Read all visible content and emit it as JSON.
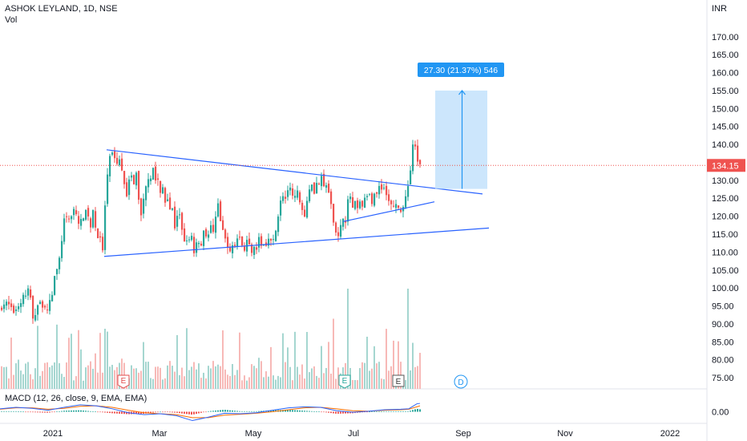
{
  "header": {
    "title": "ASHOK LEYLAND, 1D, NSE",
    "vol_label": "Vol",
    "currency": "INR"
  },
  "macd_label": "MACD (12, 26, close, 9, EMA, EMA)",
  "measure_label": "27.30 (21.37%) 546",
  "price_tag": "134.15",
  "markers": {
    "earnings": "E",
    "dividend": "D"
  },
  "colors": {
    "up": "#26a69a",
    "down": "#ef5350",
    "line": "#2962ff",
    "measure": "#2196f3",
    "measure_fill": "#bbdefb",
    "last_price": "#ef5350"
  },
  "chart_data": {
    "type": "candlestick",
    "title": "ASHOK LEYLAND, 1D, NSE",
    "ylim": [
      73,
      178
    ],
    "y_ticks": [
      75,
      80,
      85,
      90,
      95,
      100,
      105,
      110,
      115,
      120,
      125,
      130,
      135,
      140,
      145,
      150,
      155,
      160,
      165,
      170
    ],
    "x_ticks": [
      "2021",
      "Mar",
      "May",
      "Jul",
      "Sep",
      "Nov",
      "2022"
    ],
    "last_price": 134.15,
    "close_path": [
      [
        0,
        94
      ],
      [
        6,
        96
      ],
      [
        12,
        95
      ],
      [
        16,
        93
      ],
      [
        22,
        95
      ],
      [
        26,
        96
      ],
      [
        30,
        99
      ],
      [
        33,
        97
      ],
      [
        36,
        101
      ],
      [
        38,
        97
      ],
      [
        40,
        93
      ],
      [
        42,
        89
      ],
      [
        44,
        93
      ],
      [
        48,
        96
      ],
      [
        52,
        95
      ],
      [
        55,
        96
      ],
      [
        58,
        93
      ],
      [
        60,
        95
      ],
      [
        62,
        96
      ],
      [
        64,
        100
      ],
      [
        66,
        97
      ],
      [
        68,
        103
      ],
      [
        70,
        106
      ],
      [
        72,
        104
      ],
      [
        74,
        108
      ],
      [
        76,
        113
      ],
      [
        78,
        114
      ],
      [
        80,
        119
      ],
      [
        82,
        117
      ],
      [
        84,
        121
      ],
      [
        86,
        119
      ],
      [
        88,
        117
      ],
      [
        90,
        124
      ],
      [
        92,
        122
      ],
      [
        94,
        120
      ],
      [
        96,
        121
      ],
      [
        98,
        118
      ],
      [
        100,
        116
      ],
      [
        102,
        121
      ],
      [
        104,
        120
      ],
      [
        106,
        118
      ],
      [
        108,
        124
      ],
      [
        110,
        120
      ],
      [
        112,
        118
      ],
      [
        114,
        116
      ],
      [
        116,
        121
      ],
      [
        118,
        119
      ],
      [
        120,
        116
      ],
      [
        122,
        114
      ],
      [
        124,
        117
      ],
      [
        126,
        112
      ],
      [
        128,
        110
      ],
      [
        130,
        119
      ],
      [
        132,
        127
      ],
      [
        134,
        131
      ],
      [
        136,
        136
      ],
      [
        138,
        138
      ],
      [
        140,
        137
      ],
      [
        142,
        135
      ],
      [
        144,
        136
      ],
      [
        146,
        134
      ],
      [
        148,
        137
      ],
      [
        150,
        135
      ],
      [
        152,
        133
      ],
      [
        154,
        131
      ],
      [
        156,
        128
      ],
      [
        158,
        126
      ],
      [
        160,
        129
      ],
      [
        162,
        133
      ],
      [
        164,
        131
      ],
      [
        166,
        128
      ],
      [
        168,
        129
      ],
      [
        170,
        132
      ],
      [
        172,
        126
      ],
      [
        174,
        124
      ],
      [
        176,
        120
      ],
      [
        178,
        124
      ],
      [
        180,
        126
      ],
      [
        182,
        128
      ],
      [
        184,
        130
      ],
      [
        186,
        132
      ],
      [
        188,
        131
      ],
      [
        190,
        134
      ],
      [
        192,
        133
      ],
      [
        194,
        130
      ],
      [
        196,
        132
      ],
      [
        198,
        128
      ],
      [
        200,
        126
      ],
      [
        202,
        129
      ],
      [
        204,
        127
      ],
      [
        206,
        124
      ],
      [
        208,
        126
      ],
      [
        210,
        125
      ],
      [
        212,
        122
      ],
      [
        214,
        124
      ],
      [
        216,
        120
      ],
      [
        218,
        117
      ],
      [
        220,
        119
      ],
      [
        222,
        122
      ],
      [
        224,
        120
      ],
      [
        226,
        118
      ],
      [
        228,
        115
      ],
      [
        230,
        113
      ],
      [
        232,
        116
      ],
      [
        234,
        112
      ],
      [
        236,
        114
      ],
      [
        238,
        116
      ],
      [
        240,
        113
      ],
      [
        242,
        110
      ],
      [
        244,
        112
      ],
      [
        246,
        114
      ],
      [
        248,
        113
      ],
      [
        250,
        111
      ],
      [
        252,
        113
      ],
      [
        254,
        116
      ],
      [
        256,
        114
      ],
      [
        258,
        116
      ],
      [
        260,
        115
      ],
      [
        262,
        118
      ],
      [
        264,
        117
      ],
      [
        266,
        115
      ],
      [
        268,
        119
      ],
      [
        270,
        122
      ],
      [
        272,
        124
      ],
      [
        274,
        120
      ],
      [
        276,
        117
      ],
      [
        278,
        116
      ],
      [
        280,
        114
      ],
      [
        282,
        113
      ],
      [
        284,
        112
      ],
      [
        286,
        110
      ],
      [
        288,
        109
      ],
      [
        290,
        112
      ],
      [
        292,
        111
      ],
      [
        294,
        113
      ],
      [
        296,
        114
      ],
      [
        298,
        113
      ],
      [
        300,
        115
      ],
      [
        302,
        112
      ],
      [
        304,
        110
      ],
      [
        306,
        112
      ],
      [
        308,
        113
      ],
      [
        310,
        112
      ],
      [
        312,
        111
      ],
      [
        314,
        109
      ],
      [
        316,
        110
      ],
      [
        318,
        112
      ],
      [
        320,
        111
      ],
      [
        322,
        113
      ],
      [
        324,
        114
      ],
      [
        326,
        112
      ],
      [
        328,
        111
      ],
      [
        330,
        113
      ],
      [
        332,
        112
      ],
      [
        334,
        114
      ],
      [
        336,
        115
      ],
      [
        338,
        113
      ],
      [
        340,
        112
      ],
      [
        342,
        114
      ],
      [
        344,
        116
      ],
      [
        346,
        119
      ],
      [
        348,
        122
      ],
      [
        350,
        124
      ],
      [
        352,
        125
      ],
      [
        354,
        126
      ],
      [
        356,
        125
      ],
      [
        358,
        127
      ],
      [
        360,
        126
      ],
      [
        362,
        128
      ],
      [
        364,
        126
      ],
      [
        366,
        127
      ],
      [
        368,
        125
      ],
      [
        370,
        127
      ],
      [
        372,
        126
      ],
      [
        374,
        124
      ],
      [
        376,
        123
      ],
      [
        378,
        122
      ],
      [
        380,
        120
      ],
      [
        382,
        124
      ],
      [
        384,
        126
      ],
      [
        386,
        128
      ],
      [
        388,
        130
      ],
      [
        390,
        128
      ],
      [
        392,
        127
      ],
      [
        394,
        128
      ],
      [
        396,
        130
      ],
      [
        398,
        129
      ],
      [
        400,
        131
      ],
      [
        402,
        130
      ],
      [
        404,
        128
      ],
      [
        406,
        130
      ],
      [
        408,
        128
      ],
      [
        410,
        126
      ],
      [
        412,
        124
      ],
      [
        414,
        122
      ],
      [
        416,
        119
      ],
      [
        418,
        117
      ],
      [
        420,
        115
      ],
      [
        422,
        114
      ],
      [
        424,
        116
      ],
      [
        426,
        118
      ],
      [
        428,
        120
      ],
      [
        430,
        118
      ],
      [
        432,
        120
      ],
      [
        434,
        124
      ],
      [
        436,
        126
      ],
      [
        438,
        125
      ],
      [
        440,
        122
      ],
      [
        442,
        124
      ],
      [
        444,
        123
      ],
      [
        446,
        122
      ],
      [
        448,
        123
      ],
      [
        450,
        124
      ],
      [
        452,
        123
      ],
      [
        454,
        125
      ],
      [
        456,
        124
      ],
      [
        458,
        126
      ],
      [
        460,
        125
      ],
      [
        462,
        126
      ],
      [
        464,
        124
      ],
      [
        466,
        126
      ],
      [
        468,
        127
      ],
      [
        470,
        126
      ],
      [
        472,
        128
      ],
      [
        474,
        129
      ],
      [
        476,
        128
      ],
      [
        478,
        129
      ],
      [
        480,
        127
      ],
      [
        482,
        126
      ],
      [
        484,
        125
      ],
      [
        486,
        124
      ],
      [
        488,
        123
      ],
      [
        490,
        124
      ],
      [
        492,
        122
      ],
      [
        494,
        123
      ],
      [
        496,
        122
      ],
      [
        498,
        123
      ],
      [
        500,
        121
      ],
      [
        502,
        122
      ],
      [
        504,
        124
      ],
      [
        506,
        125
      ],
      [
        508,
        127
      ],
      [
        510,
        130
      ],
      [
        512,
        133
      ],
      [
        514,
        138
      ],
      [
        516,
        142
      ],
      [
        518,
        139
      ],
      [
        520,
        136
      ],
      [
        522,
        135
      ],
      [
        524,
        134.15
      ]
    ],
    "volume_max": 100,
    "macd": {
      "ylim": [
        -2.2,
        2.2
      ],
      "y_ticks": [
        0
      ],
      "macd_path": [
        [
          0,
          0.6
        ],
        [
          20,
          0.9
        ],
        [
          40,
          0.7
        ],
        [
          60,
          0.3
        ],
        [
          80,
          0.9
        ],
        [
          100,
          1.4
        ],
        [
          120,
          1.2
        ],
        [
          140,
          0.6
        ],
        [
          160,
          -0.2
        ],
        [
          180,
          -0.6
        ],
        [
          200,
          -0.4
        ],
        [
          220,
          -0.8
        ],
        [
          240,
          -1.8
        ],
        [
          260,
          -1.1
        ],
        [
          280,
          -0.3
        ],
        [
          300,
          -0.4
        ],
        [
          320,
          -0.2
        ],
        [
          340,
          0.3
        ],
        [
          360,
          0.8
        ],
        [
          380,
          1.0
        ],
        [
          400,
          0.9
        ],
        [
          420,
          0.2
        ],
        [
          440,
          -0.1
        ],
        [
          460,
          0.1
        ],
        [
          480,
          0.4
        ],
        [
          500,
          0.5
        ],
        [
          510,
          0.6
        ],
        [
          520,
          1.6
        ],
        [
          524,
          1.7
        ]
      ],
      "signal_path": [
        [
          0,
          0.5
        ],
        [
          20,
          0.8
        ],
        [
          40,
          0.8
        ],
        [
          60,
          0.5
        ],
        [
          80,
          0.7
        ],
        [
          100,
          1.1
        ],
        [
          120,
          1.2
        ],
        [
          140,
          0.9
        ],
        [
          160,
          0.3
        ],
        [
          180,
          -0.2
        ],
        [
          200,
          -0.4
        ],
        [
          220,
          -0.6
        ],
        [
          240,
          -1.2
        ],
        [
          260,
          -1.2
        ],
        [
          280,
          -0.7
        ],
        [
          300,
          -0.5
        ],
        [
          320,
          -0.3
        ],
        [
          340,
          0.0
        ],
        [
          360,
          0.4
        ],
        [
          380,
          0.8
        ],
        [
          400,
          0.9
        ],
        [
          420,
          0.6
        ],
        [
          440,
          0.2
        ],
        [
          460,
          0.1
        ],
        [
          480,
          0.3
        ],
        [
          500,
          0.4
        ],
        [
          510,
          0.5
        ],
        [
          520,
          1.0
        ],
        [
          524,
          1.2
        ]
      ]
    },
    "trendlines": [
      {
        "x1": 133,
        "p1": 138.5,
        "x2": 602,
        "p2": 126.2
      },
      {
        "x1": 130,
        "p1": 108.8,
        "x2": 610,
        "p2": 116.7
      },
      {
        "x1": 428,
        "p1": 118.5,
        "x2": 542,
        "p2": 124.0
      }
    ],
    "measure": {
      "x1": 543,
      "x2": 608,
      "p_low": 127.6,
      "p_high": 155.0,
      "label": "27.30 (21.37%) 546"
    }
  }
}
